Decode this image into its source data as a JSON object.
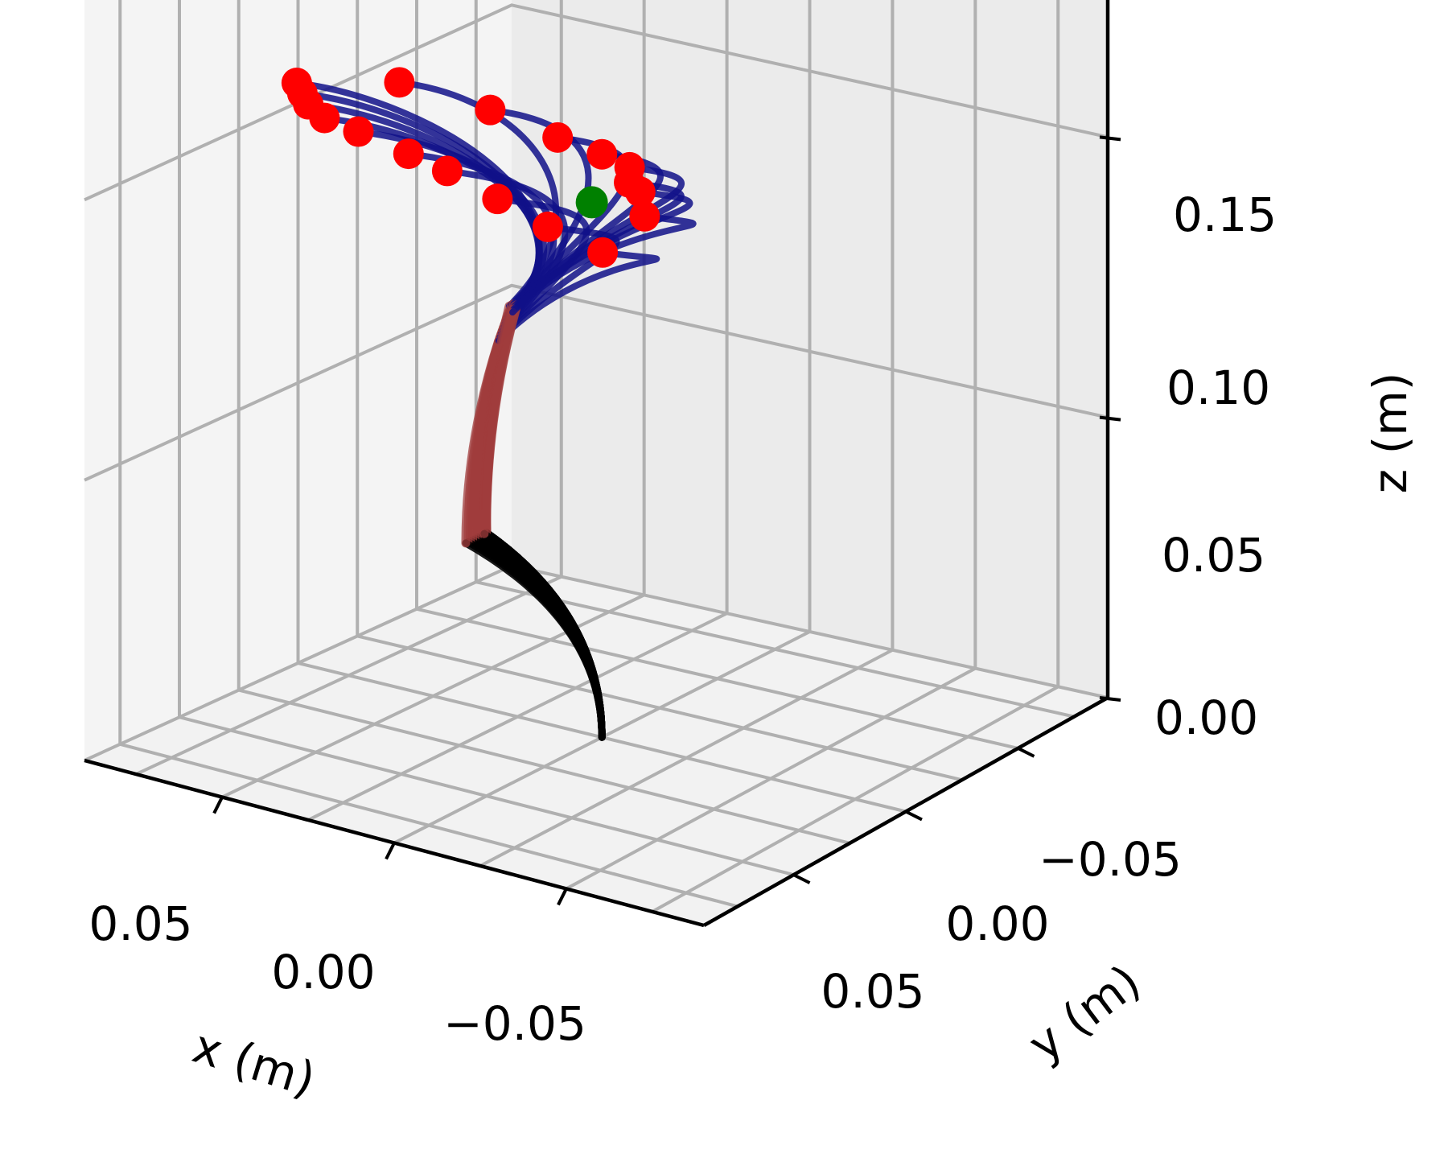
{
  "chart_data": {
    "type": "line3d",
    "title": "",
    "xlabel": "x (m)",
    "ylabel": "y (m)",
    "zlabel": "z (m)",
    "xlim": [
      -0.09,
      0.09
    ],
    "ylim": [
      -0.09,
      0.09
    ],
    "zlim": [
      0.0,
      0.15
    ],
    "x_ticks": [
      {
        "value": 0.05,
        "label": "0.05"
      },
      {
        "value": 0.0,
        "label": "0.00"
      },
      {
        "value": -0.05,
        "label": "−0.05"
      }
    ],
    "y_ticks": [
      {
        "value": -0.05,
        "label": "−0.05"
      },
      {
        "value": 0.0,
        "label": "0.00"
      },
      {
        "value": 0.05,
        "label": "0.05"
      }
    ],
    "z_ticks": [
      {
        "value": 0.0,
        "label": "0.00"
      },
      {
        "value": 0.05,
        "label": "0.05"
      },
      {
        "value": 0.1,
        "label": "0.10"
      },
      {
        "value": 0.15,
        "label": "0.15"
      }
    ],
    "grid": true,
    "segment_colors": {
      "base": "#000000",
      "middle": "#a03c3c",
      "tip": "#101088"
    },
    "tip_marker_color": "#ff0000",
    "target_color": "#008000",
    "target": {
      "x": 0.003,
      "y": 0.0,
      "z": 0.095
    },
    "base_point": {
      "x": 0.0,
      "y": 0.0,
      "z": 0.0
    },
    "rods": [
      {
        "seg1_end": {
          "x": 0.0,
          "y": -0.05,
          "z": 0.047
        },
        "seg2_end": {
          "x": -0.012,
          "y": -0.058,
          "z": 0.09
        },
        "tip": {
          "x": 0.075,
          "y": -0.022,
          "z": 0.11
        }
      },
      {
        "seg1_end": {
          "x": 0.0,
          "y": -0.051,
          "z": 0.047
        },
        "seg2_end": {
          "x": -0.013,
          "y": -0.06,
          "z": 0.09
        },
        "tip": {
          "x": 0.065,
          "y": -0.034,
          "z": 0.112
        }
      },
      {
        "seg1_end": {
          "x": 0.0,
          "y": -0.052,
          "z": 0.047
        },
        "seg2_end": {
          "x": -0.014,
          "y": -0.062,
          "z": 0.09
        },
        "tip": {
          "x": 0.055,
          "y": -0.046,
          "z": 0.114
        }
      },
      {
        "seg1_end": {
          "x": 0.0,
          "y": -0.053,
          "z": 0.047
        },
        "seg2_end": {
          "x": -0.015,
          "y": -0.064,
          "z": 0.09
        },
        "tip": {
          "x": 0.042,
          "y": -0.058,
          "z": 0.116
        }
      },
      {
        "seg1_end": {
          "x": 0.0,
          "y": -0.054,
          "z": 0.047
        },
        "seg2_end": {
          "x": -0.016,
          "y": -0.066,
          "z": 0.09
        },
        "tip": {
          "x": 0.028,
          "y": -0.064,
          "z": 0.117
        }
      },
      {
        "seg1_end": {
          "x": 0.0,
          "y": -0.055,
          "z": 0.047
        },
        "seg2_end": {
          "x": -0.017,
          "y": -0.068,
          "z": 0.09
        },
        "tip": {
          "x": 0.012,
          "y": -0.066,
          "z": 0.116
        }
      },
      {
        "seg1_end": {
          "x": 0.0,
          "y": -0.056,
          "z": 0.047
        },
        "seg2_end": {
          "x": -0.018,
          "y": -0.07,
          "z": 0.09
        },
        "tip": {
          "x": -0.002,
          "y": -0.07,
          "z": 0.116
        }
      },
      {
        "seg1_end": {
          "x": 0.0,
          "y": -0.057,
          "z": 0.047
        },
        "seg2_end": {
          "x": -0.019,
          "y": -0.072,
          "z": 0.09
        },
        "tip": {
          "x": -0.018,
          "y": -0.072,
          "z": 0.114
        }
      },
      {
        "seg1_end": {
          "x": 0.0,
          "y": -0.058,
          "z": 0.047
        },
        "seg2_end": {
          "x": -0.02,
          "y": -0.074,
          "z": 0.09
        },
        "tip": {
          "x": -0.034,
          "y": -0.074,
          "z": 0.112
        }
      },
      {
        "seg1_end": {
          "x": 0.0,
          "y": -0.059,
          "z": 0.047
        },
        "seg2_end": {
          "x": -0.021,
          "y": -0.076,
          "z": 0.09
        },
        "tip": {
          "x": -0.05,
          "y": -0.074,
          "z": 0.11
        }
      },
      {
        "seg1_end": {
          "x": 0.0,
          "y": -0.05,
          "z": 0.047
        },
        "seg2_end": {
          "x": -0.01,
          "y": -0.055,
          "z": 0.09
        },
        "tip": {
          "x": 0.06,
          "y": 0.0,
          "z": 0.108
        }
      },
      {
        "seg1_end": {
          "x": 0.0,
          "y": -0.05,
          "z": 0.047
        },
        "seg2_end": {
          "x": -0.01,
          "y": -0.054,
          "z": 0.09
        },
        "tip": {
          "x": 0.04,
          "y": 0.01,
          "z": 0.104
        }
      },
      {
        "seg1_end": {
          "x": 0.0,
          "y": -0.05,
          "z": 0.047
        },
        "seg2_end": {
          "x": -0.01,
          "y": -0.053,
          "z": 0.09
        },
        "tip": {
          "x": 0.02,
          "y": 0.01,
          "z": 0.102
        }
      },
      {
        "seg1_end": {
          "x": 0.0,
          "y": -0.05,
          "z": 0.047
        },
        "seg2_end": {
          "x": -0.011,
          "y": -0.053,
          "z": 0.09
        },
        "tip": {
          "x": 0.0,
          "y": 0.0,
          "z": 0.104
        }
      },
      {
        "seg1_end": {
          "x": 0.0,
          "y": -0.05,
          "z": 0.047
        },
        "seg2_end": {
          "x": -0.011,
          "y": -0.054,
          "z": 0.09
        },
        "tip": {
          "x": -0.015,
          "y": -0.01,
          "z": 0.106
        }
      },
      {
        "seg1_end": {
          "x": 0.0,
          "y": -0.05,
          "z": 0.047
        },
        "seg2_end": {
          "x": -0.012,
          "y": -0.055,
          "z": 0.09
        },
        "tip": {
          "x": -0.025,
          "y": -0.025,
          "z": 0.108
        }
      },
      {
        "seg1_end": {
          "x": 0.0,
          "y": -0.05,
          "z": 0.047
        },
        "seg2_end": {
          "x": -0.012,
          "y": -0.056,
          "z": 0.09
        },
        "tip": {
          "x": -0.035,
          "y": -0.035,
          "z": 0.11
        }
      },
      {
        "seg1_end": {
          "x": 0.0,
          "y": -0.051,
          "z": 0.047
        },
        "seg2_end": {
          "x": -0.013,
          "y": -0.058,
          "z": 0.09
        },
        "tip": {
          "x": -0.045,
          "y": -0.048,
          "z": 0.11
        }
      }
    ]
  }
}
